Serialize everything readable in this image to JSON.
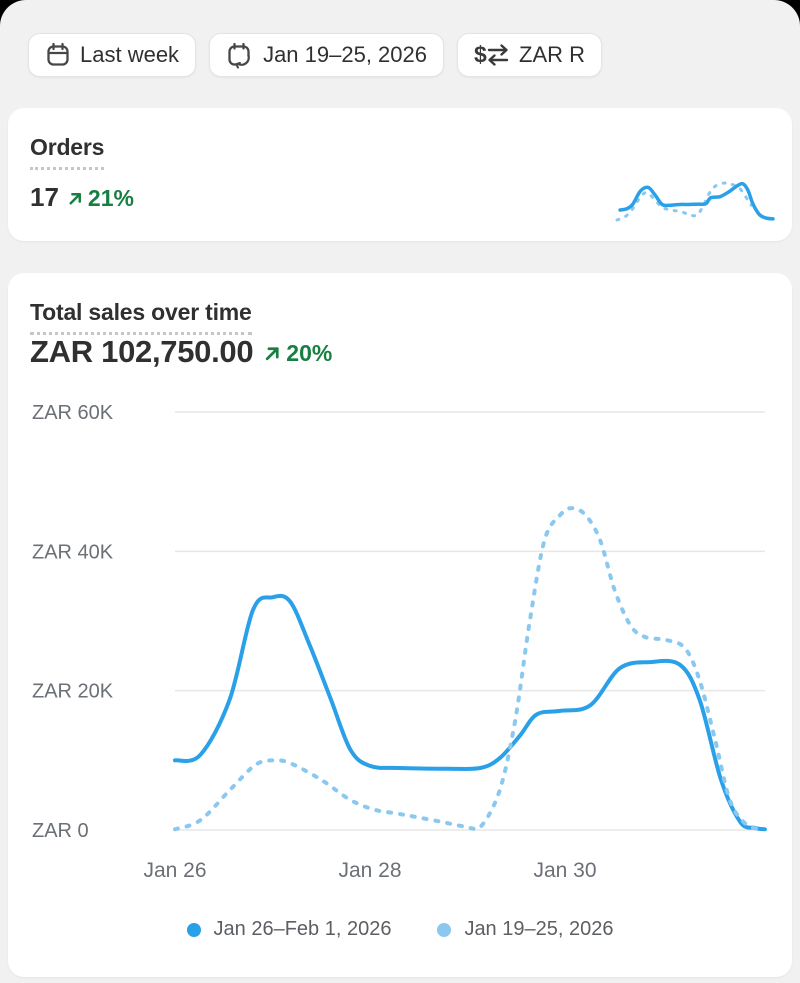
{
  "toolbar": {
    "date_range_button": {
      "label": "Last week",
      "icon": "calendar-icon"
    },
    "compare_button": {
      "label": "Jan 19–25, 2026",
      "icon": "calendar-sync-icon"
    },
    "currency_button": {
      "label": "ZAR R",
      "icon": "currency-exchange-icon"
    }
  },
  "orders_card": {
    "title": "Orders",
    "value": "17",
    "delta": "21%",
    "trend": "up"
  },
  "sales_card": {
    "title": "Total sales over time",
    "value": "ZAR 102,750.00",
    "delta": "20%",
    "trend": "up"
  },
  "colors": {
    "accent_blue": "#2aa0e8",
    "compare_blue": "#8ac8ef",
    "success_green": "#177f41",
    "text_dark": "#303030",
    "axis_gray": "#6b7076",
    "legend_gray": "#5b5f63",
    "grid_gray": "#e7e7e7",
    "background": "#f1f1f1"
  },
  "chart_data": [
    {
      "id": "sales-chart",
      "type": "line",
      "title": "Total sales over time",
      "units": "ZAR thousands",
      "ylim": [
        0,
        60
      ],
      "y_ticks": [
        "ZAR 60K",
        "ZAR 40K",
        "ZAR 20K",
        "ZAR 0"
      ],
      "y_tick_values": [
        60,
        40,
        20,
        0
      ],
      "x_ticks": [
        "Jan 26",
        "Jan 28",
        "Jan 30"
      ],
      "x_tick_days": [
        0,
        2,
        4
      ],
      "xlim_days": [
        0,
        6.05
      ],
      "grid": "horizontal",
      "legend_position": "bottom",
      "series": [
        {
          "name": "Jan 26–Feb 1, 2026",
          "style": "solid",
          "color": "#2aa0e8",
          "points": [
            [
              0,
              10
            ],
            [
              0.26,
              10.8
            ],
            [
              0.56,
              18.7
            ],
            [
              0.8,
              31.6
            ],
            [
              1,
              33.4
            ],
            [
              1.18,
              32.8
            ],
            [
              1.38,
              26.6
            ],
            [
              1.6,
              18.7
            ],
            [
              1.8,
              11.5
            ],
            [
              2,
              9.2
            ],
            [
              2.3,
              8.9
            ],
            [
              2.8,
              8.8
            ],
            [
              3.13,
              8.9
            ],
            [
              3.33,
              10.3
            ],
            [
              3.54,
              13.6
            ],
            [
              3.71,
              16.6
            ],
            [
              3.95,
              17.1
            ],
            [
              4.26,
              17.9
            ],
            [
              4.56,
              23.2
            ],
            [
              4.87,
              24.1
            ],
            [
              5.18,
              23.7
            ],
            [
              5.38,
              18.7
            ],
            [
              5.6,
              7.2
            ],
            [
              5.8,
              1.1
            ],
            [
              5.95,
              0.3
            ],
            [
              6.05,
              0.1
            ]
          ]
        },
        {
          "name": "Jan 19–25, 2026",
          "style": "dashed",
          "color": "#8ac8ef",
          "points": [
            [
              0,
              0.1
            ],
            [
              0.26,
              1.4
            ],
            [
              0.56,
              5.7
            ],
            [
              0.82,
              9.3
            ],
            [
              1,
              10
            ],
            [
              1.18,
              9.6
            ],
            [
              1.5,
              7.2
            ],
            [
              1.8,
              4.3
            ],
            [
              2.05,
              2.9
            ],
            [
              2.26,
              2.4
            ],
            [
              2.46,
              1.9
            ],
            [
              2.72,
              1.2
            ],
            [
              2.97,
              0.5
            ],
            [
              3.13,
              0.4
            ],
            [
              3.33,
              5.7
            ],
            [
              3.49,
              15.8
            ],
            [
              3.64,
              30.1
            ],
            [
              3.79,
              41.6
            ],
            [
              3.95,
              45.2
            ],
            [
              4.07,
              46.2
            ],
            [
              4.21,
              45.2
            ],
            [
              4.36,
              41.6
            ],
            [
              4.51,
              34.4
            ],
            [
              4.67,
              29.4
            ],
            [
              4.82,
              27.7
            ],
            [
              5.03,
              27.3
            ],
            [
              5.23,
              26.1
            ],
            [
              5.38,
              21.5
            ],
            [
              5.54,
              12.9
            ],
            [
              5.69,
              4.3
            ],
            [
              5.85,
              0.9
            ],
            [
              6,
              0.1
            ]
          ]
        }
      ]
    },
    {
      "id": "orders-sparkline",
      "type": "line",
      "title": "Orders trend sparkline (no axes shown)",
      "units": "relative: x = fraction of week, y = fraction of peak",
      "series": [
        {
          "name": "Jan 26–Feb 1, 2026",
          "style": "solid",
          "color": "#2aa0e8",
          "points": [
            [
              0.02,
              0.27
            ],
            [
              0.06,
              0.3
            ],
            [
              0.1,
              0.42
            ],
            [
              0.15,
              0.78
            ],
            [
              0.2,
              0.88
            ],
            [
              0.24,
              0.7
            ],
            [
              0.29,
              0.42
            ],
            [
              0.34,
              0.4
            ],
            [
              0.4,
              0.42
            ],
            [
              0.46,
              0.42
            ],
            [
              0.52,
              0.43
            ],
            [
              0.57,
              0.44
            ],
            [
              0.6,
              0.6
            ],
            [
              0.66,
              0.63
            ],
            [
              0.72,
              0.77
            ],
            [
              0.78,
              0.95
            ],
            [
              0.81,
              0.97
            ],
            [
              0.84,
              0.8
            ],
            [
              0.87,
              0.45
            ],
            [
              0.91,
              0.16
            ],
            [
              0.95,
              0.06
            ],
            [
              1,
              0.03
            ]
          ]
        },
        {
          "name": "Jan 19–25, 2026",
          "style": "dashed",
          "color": "#8ac8ef",
          "points": [
            [
              0,
              0.0
            ],
            [
              0.05,
              0.08
            ],
            [
              0.1,
              0.3
            ],
            [
              0.15,
              0.62
            ],
            [
              0.19,
              0.74
            ],
            [
              0.24,
              0.56
            ],
            [
              0.29,
              0.34
            ],
            [
              0.35,
              0.27
            ],
            [
              0.42,
              0.21
            ],
            [
              0.48,
              0.12
            ],
            [
              0.52,
              0.16
            ],
            [
              0.56,
              0.45
            ],
            [
              0.6,
              0.78
            ],
            [
              0.64,
              0.94
            ],
            [
              0.69,
              1.0
            ],
            [
              0.73,
              0.97
            ],
            [
              0.78,
              0.88
            ],
            [
              0.82,
              0.66
            ],
            [
              0.86,
              0.4
            ]
          ]
        }
      ]
    }
  ]
}
